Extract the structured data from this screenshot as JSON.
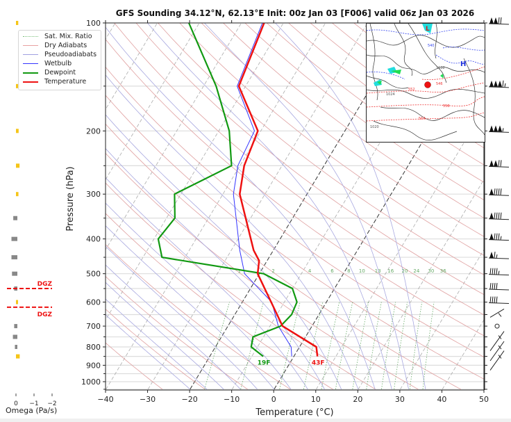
{
  "chart_data": {
    "type": "line",
    "subtype": "skew-t log-p sounding",
    "title": "GFS Sounding 34.12°N, 62.13°E Init: 00z Jan 03 [F006] valid 06z Jan 03 2026",
    "xlabel": "Temperature (°C)",
    "ylabel": "Pressure (hPa)",
    "xlim": [
      -40,
      50
    ],
    "ylim": [
      1050,
      100
    ],
    "x_ticks": [
      "−40",
      "−30",
      "−20",
      "−10",
      "0",
      "10",
      "20",
      "30",
      "40",
      "50"
    ],
    "x_tick_values": [
      -40,
      -30,
      -20,
      -10,
      0,
      10,
      20,
      30,
      40,
      50
    ],
    "y_ticks": [
      "100",
      "200",
      "300",
      "400",
      "500",
      "600",
      "700",
      "800",
      "900",
      "1000"
    ],
    "y_tick_values": [
      100,
      200,
      300,
      400,
      500,
      600,
      700,
      800,
      900,
      1000
    ],
    "legend": {
      "position": "top-left",
      "entries": [
        {
          "label": "Sat. Mix. Ratio",
          "color": "#7bbf7b",
          "style": "dotted"
        },
        {
          "label": "Dry Adiabats",
          "color": "#e8a0a0",
          "style": "solid"
        },
        {
          "label": "Pseudoadiabats",
          "color": "#a0a0e0",
          "style": "solid"
        },
        {
          "label": "Wetbulb",
          "color": "#3333ff",
          "style": "solid"
        },
        {
          "label": "Dewpoint",
          "color": "#119911",
          "style": "solid"
        },
        {
          "label": "Temperature",
          "color": "#ee1111",
          "style": "solid"
        }
      ]
    },
    "series": [
      {
        "name": "Temperature",
        "color": "#ee1111",
        "points": [
          [
            850,
            5.6
          ],
          [
            800,
            4.0
          ],
          [
            700,
            -7.0
          ],
          [
            500,
            -20.4
          ],
          [
            460,
            -21.9
          ],
          [
            430,
            -24.7
          ],
          [
            300,
            -36.0
          ],
          [
            250,
            -39.0
          ],
          [
            200,
            -40.7
          ],
          [
            150,
            -51.6
          ],
          [
            100,
            -54.6
          ]
        ]
      },
      {
        "name": "Dewpoint",
        "color": "#119911",
        "points": [
          [
            850,
            -7.3
          ],
          [
            800,
            -11.5
          ],
          [
            750,
            -12.5
          ],
          [
            700,
            -7.5
          ],
          [
            650,
            -6.5
          ],
          [
            600,
            -7.0
          ],
          [
            550,
            -10.0
          ],
          [
            500,
            -19.0
          ],
          [
            450,
            -45.5
          ],
          [
            400,
            -49.0
          ],
          [
            350,
            -48.0
          ],
          [
            300,
            -51.5
          ],
          [
            250,
            -42.0
          ],
          [
            200,
            -47.5
          ],
          [
            150,
            -57.0
          ],
          [
            100,
            -72.5
          ]
        ]
      },
      {
        "name": "Wetbulb",
        "color": "#3333ff",
        "points": [
          [
            850,
            -0.5
          ],
          [
            800,
            -2.0
          ],
          [
            700,
            -8.0
          ],
          [
            600,
            -13.0
          ],
          [
            500,
            -23.5
          ],
          [
            430,
            -28.0
          ],
          [
            300,
            -37.5
          ],
          [
            250,
            -40.5
          ],
          [
            200,
            -41.5
          ],
          [
            150,
            -52.0
          ],
          [
            100,
            -55.0
          ]
        ]
      }
    ],
    "surface_labels": [
      {
        "text": "19F",
        "series": "Dewpoint",
        "color": "#119911"
      },
      {
        "text": "43F",
        "series": "Temperature",
        "color": "#ee1111"
      }
    ],
    "mixing_ratio_labels": [
      "1",
      "2",
      "4",
      "6",
      "8",
      "10",
      "13",
      "16",
      "20",
      "24",
      "30",
      "36"
    ],
    "mixing_ratio_values": [
      1,
      2,
      4,
      6,
      8,
      10,
      13,
      16,
      20,
      24,
      30,
      36
    ],
    "highlighted_isotherms": [
      0,
      -20
    ],
    "omega": {
      "xlabel": "Omega (Pa/s)",
      "x_ticks": [
        "0",
        "−1",
        "−2"
      ],
      "x_tick_values": [
        0,
        -1,
        -2
      ],
      "values": [
        {
          "p": 100,
          "w": -0.05,
          "color": "#f5c518"
        },
        {
          "p": 150,
          "w": -0.15,
          "color": "#f5c518"
        },
        {
          "p": 200,
          "w": -0.07,
          "color": "#f5c518"
        },
        {
          "p": 250,
          "w": -0.12,
          "color": "#f5c518"
        },
        {
          "p": 300,
          "w": -0.06,
          "color": "#f5c518"
        },
        {
          "p": 350,
          "w": 0.15,
          "color": "#888888"
        },
        {
          "p": 400,
          "w": 0.25,
          "color": "#888888"
        },
        {
          "p": 450,
          "w": 0.25,
          "color": "#888888"
        },
        {
          "p": 500,
          "w": 0.22,
          "color": "#888888"
        },
        {
          "p": 550,
          "w": 0.1,
          "color": "#888888"
        },
        {
          "p": 600,
          "w": -0.02,
          "color": "#f5c518"
        },
        {
          "p": 700,
          "w": 0.1,
          "color": "#888888"
        },
        {
          "p": 750,
          "w": 0.17,
          "color": "#888888"
        },
        {
          "p": 800,
          "w": 0.06,
          "color": "#888888"
        },
        {
          "p": 850,
          "w": -0.13,
          "color": "#f5c518"
        }
      ],
      "dgz": [
        {
          "label": "DGZ",
          "p": 550,
          "color": "#ee1111"
        },
        {
          "label": "DGZ",
          "p": 620,
          "color": "#ee1111"
        }
      ]
    },
    "wind_barbs_kt": [
      {
        "p": 100,
        "speed": 120
      },
      {
        "p": 150,
        "speed": 165
      },
      {
        "p": 200,
        "speed": 155
      },
      {
        "p": 250,
        "speed": 120
      },
      {
        "p": 300,
        "speed": 90
      },
      {
        "p": 350,
        "speed": 90
      },
      {
        "p": 400,
        "speed": 85
      },
      {
        "p": 450,
        "speed": 65
      },
      {
        "p": 500,
        "speed": 45
      },
      {
        "p": 550,
        "speed": 40
      },
      {
        "p": 600,
        "speed": 40
      },
      {
        "p": 650,
        "speed": 10
      },
      {
        "p": 700,
        "speed": 0
      },
      {
        "p": 750,
        "speed": 5
      },
      {
        "p": 800,
        "speed": 10
      },
      {
        "p": 850,
        "speed": 5
      }
    ]
  },
  "colors": {
    "temperature": "#ee1111",
    "dewpoint": "#119911",
    "wetbulb": "#3333ff",
    "dry_adiabat": "#e0a0a0",
    "pseudoadiabat": "#a8a8e0",
    "mixing_ratio": "#66aa66",
    "isotherm": "#aaaaaa",
    "isobar": "#dddddd"
  },
  "inset_map": {
    "marker_color": "#ee1111",
    "contour_labels": [
      "L",
      "H",
      "540",
      "546",
      "552",
      "558",
      "564",
      "1020",
      "1024",
      "1032"
    ]
  }
}
